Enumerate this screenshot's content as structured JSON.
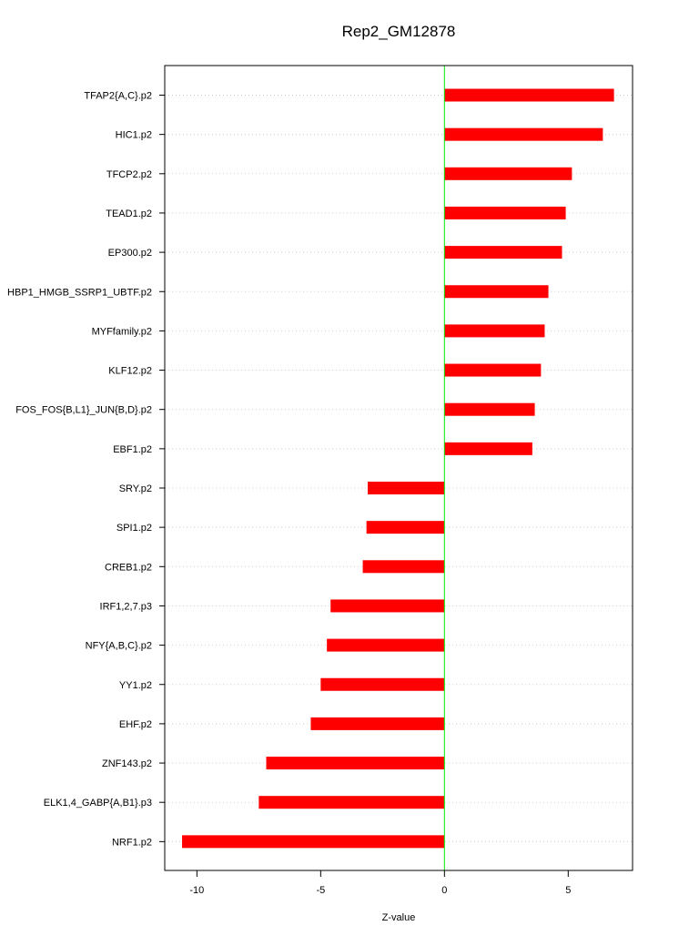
{
  "chart_data": {
    "type": "bar",
    "orientation": "horizontal",
    "title": "Rep2_GM12878",
    "xlabel": "Z-value",
    "ylabel": "",
    "xlim": [
      -11.3,
      7.6
    ],
    "xticks": [
      -10,
      -5,
      0,
      5
    ],
    "grid": "horizontal dotted",
    "zero_line_color": "#00ee00",
    "bar_color": "#ff0000",
    "categories": [
      "TFAP2{A,C}.p2",
      "HIC1.p2",
      "TFCP2.p2",
      "TEAD1.p2",
      "EP300.p2",
      "HBP1_HMGB_SSRP1_UBTF.p2",
      "MYFfamily.p2",
      "KLF12.p2",
      "FOS_FOS{B,L1}_JUN{B,D}.p2",
      "EBF1.p2",
      "SRY.p2",
      "SPI1.p2",
      "CREB1.p2",
      "IRF1,2,7.p3",
      "NFY{A,B,C}.p2",
      "YY1.p2",
      "EHF.p2",
      "ZNF143.p2",
      "ELK1,4_GABP{A,B1}.p3",
      "NRF1.p2"
    ],
    "values": [
      6.85,
      6.4,
      5.15,
      4.9,
      4.75,
      4.2,
      4.05,
      3.9,
      3.65,
      3.55,
      -3.1,
      -3.15,
      -3.3,
      -4.6,
      -4.75,
      -5.0,
      -5.4,
      -7.2,
      -7.5,
      -10.6
    ]
  }
}
